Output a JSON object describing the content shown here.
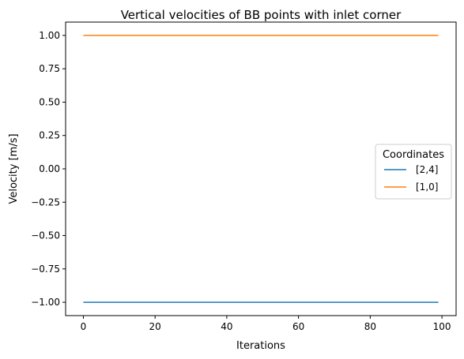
{
  "chart_data": {
    "type": "line",
    "title": "Vertical velocities of BB points with inlet corner",
    "xlabel": "Iterations",
    "ylabel": "Velocity [m/s]",
    "xlim": [
      -4.95,
      103.95
    ],
    "ylim": [
      -1.1,
      1.1
    ],
    "xticks": [
      0,
      20,
      40,
      60,
      80,
      100
    ],
    "xtick_labels": [
      "0",
      "20",
      "40",
      "60",
      "80",
      "100"
    ],
    "yticks": [
      -1.0,
      -0.75,
      -0.5,
      -0.25,
      0.0,
      0.25,
      0.5,
      0.75,
      1.0
    ],
    "ytick_labels": [
      "−1.00",
      "−0.75",
      "−0.50",
      "−0.25",
      "0.00",
      "0.25",
      "0.50",
      "0.75",
      "1.00"
    ],
    "grid": false,
    "legend": {
      "title": "Coordinates",
      "placement": "center-right"
    },
    "series": [
      {
        "name": "[2,4]",
        "color": "#1f77b4",
        "x": [
          0,
          99
        ],
        "y": [
          -1.0,
          -1.0
        ]
      },
      {
        "name": "[1,0]",
        "color": "#ff7f0e",
        "x": [
          0,
          99
        ],
        "y": [
          1.0,
          1.0
        ]
      }
    ]
  }
}
